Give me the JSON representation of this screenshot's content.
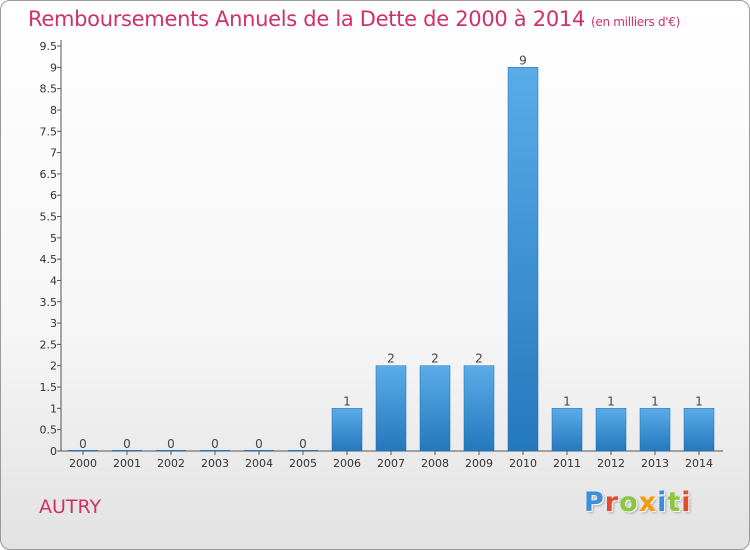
{
  "header": {
    "title": "Remboursements Annuels de la Dette de 2000 à 2014",
    "unit": "(en milliers d'€)"
  },
  "footer": {
    "commune": "AUTRY",
    "logo": [
      {
        "ch": "P",
        "color": "#3a8fd8"
      },
      {
        "ch": "r",
        "color": "#e24b2b"
      },
      {
        "ch": "o",
        "color": "#8cc63f"
      },
      {
        "ch": "x",
        "color": "#f39c12"
      },
      {
        "ch": "i",
        "color": "#3a8fd8"
      },
      {
        "ch": "t",
        "color": "#8cc63f"
      },
      {
        "ch": "i",
        "color": "#e24b2b"
      }
    ]
  },
  "colors": {
    "title": "#d0306a",
    "bar_light": "#5aace8",
    "bar_dark": "#2478bc",
    "axis": "#555555"
  },
  "chart_data": {
    "type": "bar",
    "title": "Remboursements Annuels de la Dette de 2000 à 2014",
    "subtitle": "(en milliers d'€)",
    "categories": [
      "2000",
      "2001",
      "2002",
      "2003",
      "2004",
      "2005",
      "2006",
      "2007",
      "2008",
      "2009",
      "2010",
      "2011",
      "2012",
      "2013",
      "2014"
    ],
    "values": [
      0,
      0,
      0,
      0,
      0,
      0,
      1,
      2,
      2,
      2,
      9,
      1,
      1,
      1,
      1
    ],
    "value_labels": [
      "0",
      "0",
      "0",
      "0",
      "0",
      "0",
      "1",
      "2",
      "2",
      "2",
      "9",
      "1",
      "1",
      "1",
      "1"
    ],
    "y_ticks": [
      {
        "v": 0,
        "label": "0"
      },
      {
        "v": 0.5,
        "label": "0.5"
      },
      {
        "v": 1,
        "label": "1"
      },
      {
        "v": 1.5,
        "label": "1.5"
      },
      {
        "v": 2,
        "label": "2"
      },
      {
        "v": 2.5,
        "label": "2.5"
      },
      {
        "v": 3,
        "label": "3"
      },
      {
        "v": 3.5,
        "label": "3.5"
      },
      {
        "v": 4,
        "label": "4"
      },
      {
        "v": 4.5,
        "label": "4.5"
      },
      {
        "v": 5,
        "label": "5"
      },
      {
        "v": 5.5,
        "label": "5.5"
      },
      {
        "v": 6,
        "label": "6"
      },
      {
        "v": 6.5,
        "label": "6.5"
      },
      {
        "v": 7,
        "label": "7"
      },
      {
        "v": 7.5,
        "label": "7.5"
      },
      {
        "v": 8,
        "label": "8"
      },
      {
        "v": 8.5,
        "label": "8.5"
      },
      {
        "v": 9,
        "label": "9"
      },
      {
        "v": 9.5,
        "label": "9.5"
      }
    ],
    "ylim": [
      0,
      9.5
    ],
    "grid": false,
    "legend": "none"
  }
}
